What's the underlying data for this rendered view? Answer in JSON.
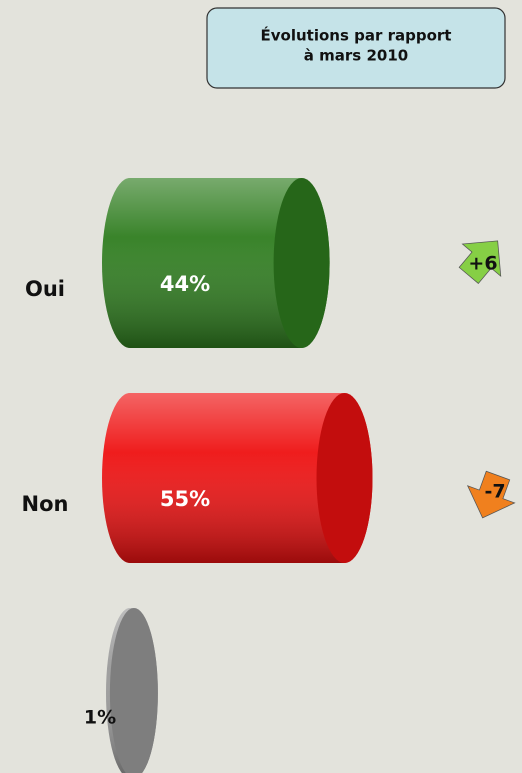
{
  "chart_data": {
    "type": "bar",
    "orientation": "horizontal",
    "annotation": [
      "Évolutions par rapport",
      "à mars 2010"
    ],
    "categories": [
      "Oui",
      "Non",
      null
    ],
    "values": [
      44,
      55,
      1
    ],
    "value_labels": [
      "44%",
      "55%",
      "1%"
    ],
    "colors": [
      "#2f7d1f",
      "#ee1111",
      "#9a9a9a"
    ],
    "xlim": [
      0,
      100
    ],
    "changes": [
      6,
      -7,
      null
    ],
    "change_labels": [
      "+6",
      "-7",
      null
    ],
    "change_up_color": "#86cf45",
    "change_down_color": "#f0801e"
  }
}
